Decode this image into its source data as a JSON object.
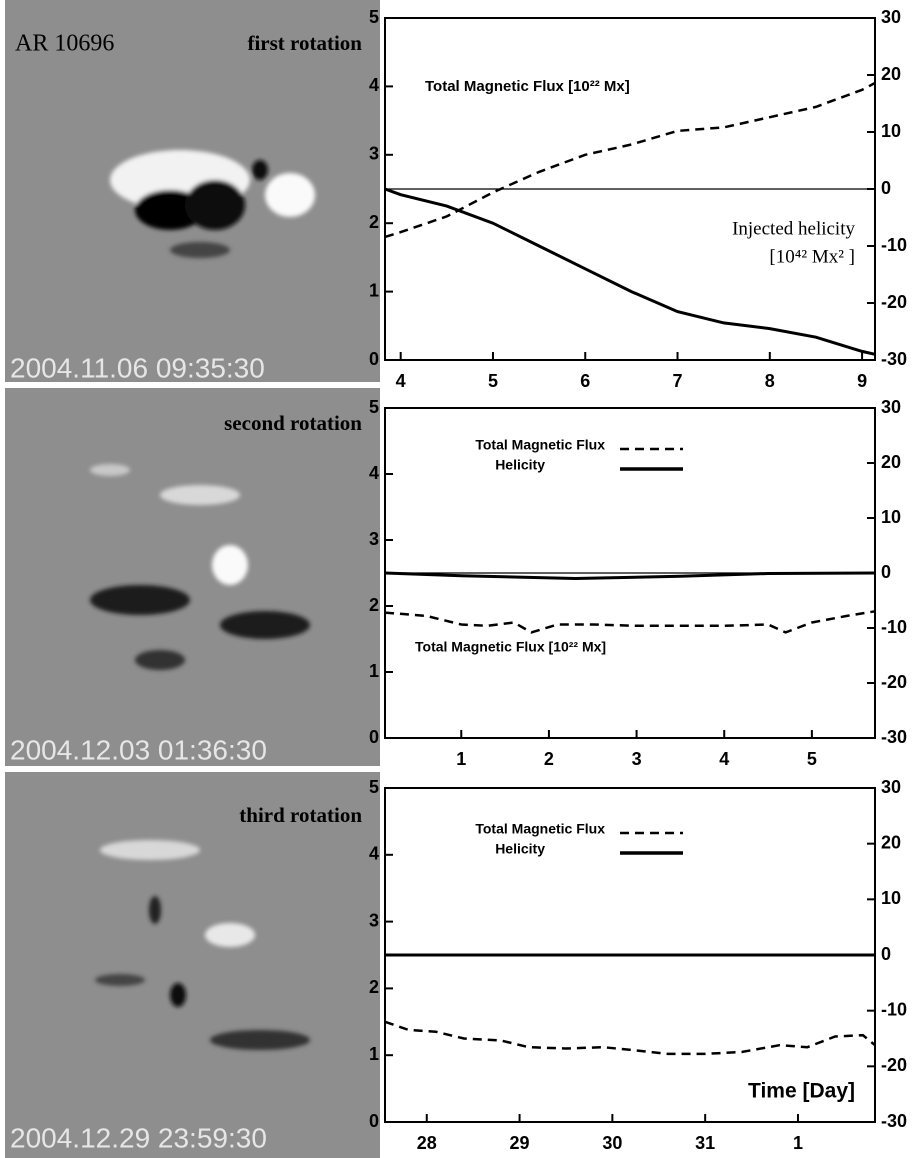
{
  "images": [
    {
      "title": "AR 10696",
      "label": "first rotation",
      "timestamp": "2004.11.06 09:35:30"
    },
    {
      "label": "second rotation",
      "timestamp": "2004.12.03 01:36:30"
    },
    {
      "label": "third rotation",
      "timestamp": "2004.12.29 23:59:30"
    }
  ],
  "chart_data": [
    {
      "type": "line",
      "annotations": [
        "Total Magnetic Flux [10²² Mx]",
        "Injected helicity",
        "[10⁴² Mx² ]"
      ],
      "xlim": [
        3.83,
        9.14
      ],
      "xticks": [
        4,
        5,
        6,
        7,
        8,
        9
      ],
      "ylim": [
        0,
        5
      ],
      "yticks": [
        0,
        1,
        2,
        3,
        4,
        5
      ],
      "y2lim": [
        -30,
        30
      ],
      "y2ticks": [
        -30,
        -20,
        -10,
        0,
        10,
        20,
        30
      ],
      "y2_refline": 0,
      "series": [
        {
          "color": "#000000",
          "dash": true,
          "x": [
            3.83,
            4,
            4.5,
            5,
            5.5,
            6,
            6.5,
            7,
            7.5,
            8,
            8.5,
            9,
            9.14
          ],
          "values": [
            1.8,
            1.87,
            2.1,
            2.45,
            2.75,
            3.0,
            3.15,
            3.35,
            3.4,
            3.55,
            3.7,
            3.95,
            4.05
          ]
        },
        {
          "color": "#000000",
          "dash": false,
          "axis": "y2",
          "x": [
            3.83,
            4,
            4.5,
            5,
            5.5,
            6,
            6.5,
            7,
            7.5,
            8,
            8.5,
            9,
            9.14
          ],
          "values": [
            0,
            -1,
            -3,
            -6,
            -10,
            -14,
            -18,
            -21.5,
            -23.5,
            -24.5,
            -26,
            -28.5,
            -29
          ]
        }
      ]
    },
    {
      "type": "line",
      "annotations": [
        "Total Magnetic Flux [10²² Mx]"
      ],
      "xlim": [
        0.13,
        5.72
      ],
      "xticks": [
        1,
        2,
        3,
        4,
        5
      ],
      "ylim": [
        0,
        5
      ],
      "yticks": [
        0,
        1,
        2,
        3,
        4,
        5
      ],
      "y2lim": [
        -30,
        30
      ],
      "y2ticks": [
        -30,
        -20,
        -10,
        0,
        10,
        20,
        30
      ],
      "y2_refline": 0,
      "series": [
        {
          "name": "Total Magnetic Flux",
          "color": "#000000",
          "dash": true,
          "x": [
            0.13,
            0.6,
            1.0,
            1.3,
            1.6,
            1.8,
            2.1,
            2.5,
            3.0,
            3.5,
            4.0,
            4.5,
            4.7,
            5.0,
            5.4,
            5.72
          ],
          "values": [
            1.9,
            1.85,
            1.72,
            1.7,
            1.75,
            1.6,
            1.72,
            1.72,
            1.7,
            1.7,
            1.7,
            1.72,
            1.6,
            1.75,
            1.85,
            1.92
          ]
        },
        {
          "name": "Helicity",
          "color": "#000000",
          "dash": false,
          "axis": "y2",
          "x": [
            0.13,
            1.0,
            2.3,
            3.5,
            4.5,
            5.72
          ],
          "values": [
            0,
            -0.5,
            -1,
            -0.6,
            -0.1,
            0
          ]
        }
      ]
    },
    {
      "type": "line",
      "annotations": [
        "Time [Day]"
      ],
      "xlim": [
        27.55,
        32.83
      ],
      "xticks": [
        28,
        29,
        30,
        31,
        {
          "value": 32,
          "label": "1"
        }
      ],
      "ylim": [
        0,
        5
      ],
      "yticks": [
        0,
        1,
        2,
        3,
        4,
        5
      ],
      "y2lim": [
        -30,
        30
      ],
      "y2ticks": [
        -30,
        -20,
        -10,
        0,
        10,
        20,
        30
      ],
      "series": [
        {
          "name": "Total Magnetic Flux",
          "color": "#000000",
          "dash": true,
          "x": [
            27.55,
            27.8,
            28.1,
            28.4,
            28.8,
            29.1,
            29.5,
            29.9,
            30.2,
            30.6,
            31.0,
            31.4,
            31.8,
            32.1,
            32.4,
            32.7,
            32.83
          ],
          "values": [
            1.5,
            1.38,
            1.35,
            1.25,
            1.22,
            1.12,
            1.1,
            1.12,
            1.08,
            1.02,
            1.02,
            1.05,
            1.15,
            1.12,
            1.28,
            1.3,
            1.15
          ]
        },
        {
          "name": "Helicity",
          "color": "#000000",
          "dash": false,
          "axis": "y2",
          "x": [
            27.55,
            30,
            32.83
          ],
          "values": [
            0,
            0,
            0
          ]
        }
      ]
    }
  ]
}
